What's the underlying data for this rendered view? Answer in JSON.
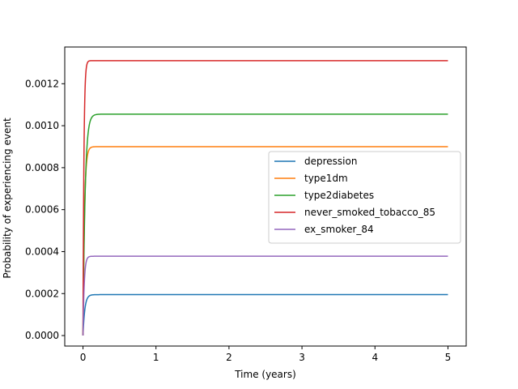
{
  "chart_data": {
    "type": "line",
    "title": "",
    "xlabel": "Time (years)",
    "ylabel": "Probability of experiencing event",
    "xlim": [
      -0.25,
      5.25
    ],
    "ylim": [
      -5e-05,
      0.001375
    ],
    "xticks": [
      0,
      1,
      2,
      3,
      4,
      5
    ],
    "xtick_labels": [
      "0",
      "1",
      "2",
      "3",
      "4",
      "5"
    ],
    "yticks": [
      0.0,
      0.0002,
      0.0004,
      0.0006,
      0.0008,
      0.001,
      0.0012
    ],
    "ytick_labels": [
      "0.0000",
      "0.0002",
      "0.0004",
      "0.0006",
      "0.0008",
      "0.0010",
      "0.0012"
    ],
    "grid": false,
    "legend_position": "center-right",
    "series": [
      {
        "name": "depression",
        "color": "#1f77b4",
        "plateau": 0.000195,
        "rate": 40,
        "x": [
          0,
          0.02,
          0.05,
          0.1,
          0.2,
          0.5,
          1,
          2,
          3,
          4,
          5
        ],
        "y": [
          0,
          0.000107,
          0.000168,
          0.000191,
          0.000195,
          0.000195,
          0.000195,
          0.000195,
          0.000195,
          0.000195,
          0.000195
        ]
      },
      {
        "name": "type1dm",
        "color": "#ff7f0e",
        "plateau": 0.0009,
        "rate": 50,
        "x": [
          0,
          0.02,
          0.05,
          0.1,
          0.2,
          0.5,
          1,
          2,
          3,
          4,
          5
        ],
        "y": [
          0,
          0.000569,
          0.000826,
          0.000894,
          0.0009,
          0.0009,
          0.0009,
          0.0009,
          0.0009,
          0.0009,
          0.0009
        ]
      },
      {
        "name": "type2diabetes",
        "color": "#2ca02c",
        "plateau": 0.001055,
        "rate": 35,
        "x": [
          0,
          0.02,
          0.05,
          0.1,
          0.2,
          0.5,
          1,
          2,
          3,
          4,
          5
        ],
        "y": [
          0,
          0.000531,
          0.000867,
          0.001023,
          0.001054,
          0.001055,
          0.001055,
          0.001055,
          0.001055,
          0.001055,
          0.001055
        ]
      },
      {
        "name": "never_smoked_tobacco_85",
        "color": "#d62728",
        "plateau": 0.00131,
        "rate": 80,
        "x": [
          0,
          0.02,
          0.05,
          0.1,
          0.2,
          0.5,
          1,
          2,
          3,
          4,
          5
        ],
        "y": [
          0,
          0.001047,
          0.001286,
          0.00131,
          0.00131,
          0.00131,
          0.00131,
          0.00131,
          0.00131,
          0.00131,
          0.00131
        ]
      },
      {
        "name": "ex_smoker_84",
        "color": "#9467bd",
        "plateau": 0.000378,
        "rate": 60,
        "x": [
          0,
          0.02,
          0.05,
          0.1,
          0.2,
          0.5,
          1,
          2,
          3,
          4,
          5
        ],
        "y": [
          0,
          0.000265,
          0.000359,
          0.000377,
          0.000378,
          0.000378,
          0.000378,
          0.000378,
          0.000378,
          0.000378,
          0.000378
        ]
      }
    ]
  }
}
